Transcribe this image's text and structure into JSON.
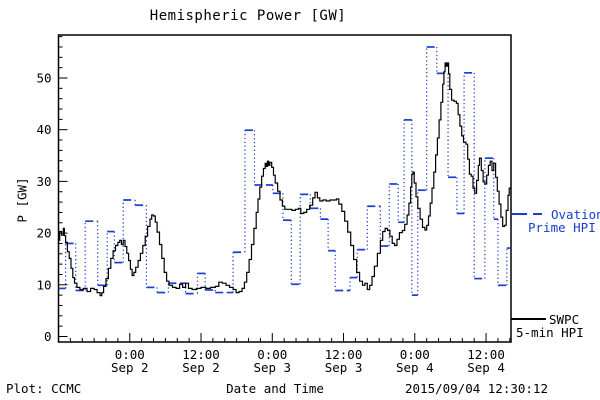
{
  "title": "Hemispheric Power [GW]",
  "axes": {
    "xlabel": "Date and Time",
    "ylabel": "P [GW]"
  },
  "footer": {
    "left": "Plot: CCMC",
    "center": "Date and Time",
    "right": "2015/09/04 12:30:12"
  },
  "legend": {
    "ovation": {
      "line1": "Ovation",
      "line2": "Prime HPI",
      "color": "#1a3ecf"
    },
    "swpc": {
      "line1": "SWPC",
      "line2": "5-min HPI",
      "color": "#000000"
    }
  },
  "chart_data": {
    "type": "line",
    "title": "Hemispheric Power [GW]",
    "xlabel": "Date and Time",
    "ylabel": "P [GW]",
    "x_unit": "hours since 2015-09-01 12:00 UT",
    "xlim_hours": [
      0,
      76.2
    ],
    "ylim": [
      0,
      58.3
    ],
    "y_ticks": [
      0,
      10,
      20,
      30,
      40,
      50
    ],
    "y_minor_step": 2,
    "x_minor_step_hours": 2,
    "x_ticks": [
      {
        "hour": 12,
        "time": "0:00",
        "date": "Sep 2"
      },
      {
        "hour": 24,
        "time": "12:00",
        "date": "Sep 2"
      },
      {
        "hour": 36,
        "time": "0:00",
        "date": "Sep 3"
      },
      {
        "hour": 48,
        "time": "12:00",
        "date": "Sep 3"
      },
      {
        "hour": 60,
        "time": "0:00",
        "date": "Sep 4"
      },
      {
        "hour": 72,
        "time": "12:00",
        "date": "Sep 4"
      }
    ],
    "series": [
      {
        "name": "SWPC 5-min HPI",
        "style": "solid-step",
        "color": "#000000",
        "points": [
          [
            0,
            18.6
          ],
          [
            0.2,
            20.3
          ],
          [
            0.5,
            19.6
          ],
          [
            0.8,
            20.9
          ],
          [
            1.0,
            19.5
          ],
          [
            1.2,
            18.2
          ],
          [
            1.5,
            16.4
          ],
          [
            1.8,
            15.1
          ],
          [
            2.1,
            13.2
          ],
          [
            2.4,
            11.4
          ],
          [
            2.7,
            10.3
          ],
          [
            3.1,
            9.5
          ],
          [
            3.6,
            9.1
          ],
          [
            4.2,
            9.3
          ],
          [
            4.8,
            8.7
          ],
          [
            5.4,
            9.3
          ],
          [
            6.0,
            9.1
          ],
          [
            6.5,
            8.5
          ],
          [
            7.0,
            7.9
          ],
          [
            7.3,
            8.5
          ],
          [
            7.6,
            9.7
          ],
          [
            8.0,
            11.2
          ],
          [
            8.4,
            13.2
          ],
          [
            8.8,
            15.1
          ],
          [
            9.2,
            16.6
          ],
          [
            9.6,
            17.6
          ],
          [
            10.0,
            18.2
          ],
          [
            10.3,
            18.6
          ],
          [
            10.6,
            17.8
          ],
          [
            10.9,
            18.6
          ],
          [
            11.2,
            17.4
          ],
          [
            11.5,
            16.1
          ],
          [
            11.8,
            14.7
          ],
          [
            12.1,
            13.0
          ],
          [
            12.4,
            11.8
          ],
          [
            12.7,
            12.4
          ],
          [
            13.0,
            13.4
          ],
          [
            13.4,
            14.7
          ],
          [
            13.8,
            16.1
          ],
          [
            14.2,
            17.6
          ],
          [
            14.6,
            19.4
          ],
          [
            15.0,
            21.3
          ],
          [
            15.4,
            22.7
          ],
          [
            15.7,
            23.5
          ],
          [
            16.0,
            23.3
          ],
          [
            16.3,
            22.1
          ],
          [
            16.6,
            20.2
          ],
          [
            17.0,
            17.8
          ],
          [
            17.4,
            15.1
          ],
          [
            17.8,
            12.4
          ],
          [
            18.2,
            10.7
          ],
          [
            18.6,
            9.9
          ],
          [
            19.2,
            9.5
          ],
          [
            19.8,
            9.3
          ],
          [
            20.4,
            10.1
          ],
          [
            20.9,
            9.5
          ],
          [
            21.4,
            10.3
          ],
          [
            21.9,
            9.3
          ],
          [
            22.5,
            9.1
          ],
          [
            23.2,
            9.3
          ],
          [
            24.0,
            9.5
          ],
          [
            24.8,
            9.3
          ],
          [
            25.6,
            9.5
          ],
          [
            26.4,
            9.7
          ],
          [
            27.0,
            10.5
          ],
          [
            27.6,
            10.3
          ],
          [
            28.2,
            9.9
          ],
          [
            28.8,
            9.5
          ],
          [
            29.4,
            9.1
          ],
          [
            29.9,
            8.5
          ],
          [
            30.4,
            8.7
          ],
          [
            30.9,
            9.3
          ],
          [
            31.3,
            10.5
          ],
          [
            31.7,
            12.4
          ],
          [
            32.1,
            14.9
          ],
          [
            32.5,
            17.8
          ],
          [
            32.9,
            20.9
          ],
          [
            33.3,
            24.0
          ],
          [
            33.6,
            26.6
          ],
          [
            33.9,
            28.9
          ],
          [
            34.2,
            31.0
          ],
          [
            34.5,
            32.5
          ],
          [
            34.8,
            33.5
          ],
          [
            35.0,
            32.9
          ],
          [
            35.2,
            33.9
          ],
          [
            35.4,
            33.1
          ],
          [
            35.6,
            33.7
          ],
          [
            35.9,
            32.7
          ],
          [
            36.2,
            31.2
          ],
          [
            36.5,
            29.7
          ],
          [
            36.9,
            28.1
          ],
          [
            37.3,
            26.4
          ],
          [
            37.7,
            25.2
          ],
          [
            38.1,
            24.6
          ],
          [
            38.7,
            24.6
          ],
          [
            39.3,
            24.4
          ],
          [
            39.9,
            24.6
          ],
          [
            40.4,
            24.8
          ],
          [
            40.8,
            23.8
          ],
          [
            41.3,
            24.0
          ],
          [
            41.8,
            24.6
          ],
          [
            42.3,
            25.4
          ],
          [
            42.8,
            26.8
          ],
          [
            43.2,
            27.9
          ],
          [
            43.6,
            26.8
          ],
          [
            44.0,
            26.2
          ],
          [
            44.5,
            26.4
          ],
          [
            45.1,
            26.2
          ],
          [
            45.7,
            26.4
          ],
          [
            46.3,
            26.4
          ],
          [
            46.8,
            26.6
          ],
          [
            47.2,
            25.6
          ],
          [
            47.7,
            24.2
          ],
          [
            48.2,
            22.3
          ],
          [
            48.7,
            20.2
          ],
          [
            49.2,
            17.6
          ],
          [
            49.7,
            14.9
          ],
          [
            50.2,
            12.4
          ],
          [
            50.7,
            10.7
          ],
          [
            51.2,
            9.9
          ],
          [
            51.6,
            10.3
          ],
          [
            52.0,
            9.1
          ],
          [
            52.4,
            9.9
          ],
          [
            52.8,
            11.6
          ],
          [
            53.2,
            13.6
          ],
          [
            53.7,
            16.1
          ],
          [
            54.2,
            18.6
          ],
          [
            54.6,
            20.3
          ],
          [
            55.0,
            20.9
          ],
          [
            55.4,
            20.5
          ],
          [
            55.8,
            19.4
          ],
          [
            56.2,
            18.0
          ],
          [
            56.6,
            17.6
          ],
          [
            57.0,
            18.8
          ],
          [
            57.4,
            20.1
          ],
          [
            57.9,
            20.5
          ],
          [
            58.3,
            21.7
          ],
          [
            58.7,
            23.5
          ],
          [
            59.0,
            25.8
          ],
          [
            59.3,
            28.9
          ],
          [
            59.5,
            31.4
          ],
          [
            59.7,
            31.8
          ],
          [
            59.9,
            29.7
          ],
          [
            60.2,
            27.0
          ],
          [
            60.5,
            24.8
          ],
          [
            60.9,
            22.7
          ],
          [
            61.3,
            21.1
          ],
          [
            61.7,
            20.6
          ],
          [
            62.0,
            21.5
          ],
          [
            62.3,
            23.3
          ],
          [
            62.6,
            25.8
          ],
          [
            62.9,
            28.7
          ],
          [
            63.2,
            31.8
          ],
          [
            63.5,
            35.1
          ],
          [
            63.8,
            38.4
          ],
          [
            64.1,
            41.9
          ],
          [
            64.4,
            45.3
          ],
          [
            64.7,
            48.8
          ],
          [
            64.9,
            51.2
          ],
          [
            65.1,
            52.9
          ],
          [
            65.3,
            52.3
          ],
          [
            65.5,
            52.9
          ],
          [
            65.7,
            50.8
          ],
          [
            65.9,
            47.8
          ],
          [
            66.2,
            45.7
          ],
          [
            66.6,
            45.5
          ],
          [
            67.0,
            45.1
          ],
          [
            67.3,
            42.9
          ],
          [
            67.6,
            40.7
          ],
          [
            67.9,
            38.8
          ],
          [
            68.2,
            37.6
          ],
          [
            68.6,
            37.2
          ],
          [
            68.9,
            34.3
          ],
          [
            69.2,
            31.4
          ],
          [
            69.5,
            31.0
          ],
          [
            69.8,
            28.7
          ],
          [
            70.1,
            27.7
          ],
          [
            70.4,
            30.2
          ],
          [
            70.7,
            33.1
          ],
          [
            70.9,
            34.5
          ],
          [
            71.2,
            32.1
          ],
          [
            71.5,
            29.9
          ],
          [
            71.8,
            29.5
          ],
          [
            72.1,
            31.2
          ],
          [
            72.4,
            33.1
          ],
          [
            72.7,
            33.9
          ],
          [
            73.0,
            32.1
          ],
          [
            73.3,
            33.5
          ],
          [
            73.6,
            30.8
          ],
          [
            73.9,
            28.1
          ],
          [
            74.2,
            25.6
          ],
          [
            74.5,
            23.1
          ],
          [
            74.8,
            21.3
          ],
          [
            75.1,
            21.5
          ],
          [
            75.4,
            24.4
          ],
          [
            75.7,
            27.3
          ],
          [
            75.9,
            28.7
          ],
          [
            76.2,
            27.5
          ]
        ]
      },
      {
        "name": "Ovation Prime HPI",
        "style": "dashed-step",
        "color": "#1a3ecf",
        "end_hour": 76.2,
        "steps": [
          [
            0.0,
            9.3
          ],
          [
            1.2,
            18.0
          ],
          [
            2.9,
            8.9
          ],
          [
            4.5,
            22.3
          ],
          [
            6.6,
            9.9
          ],
          [
            8.2,
            20.3
          ],
          [
            9.4,
            14.3
          ],
          [
            10.9,
            26.4
          ],
          [
            12.9,
            25.4
          ],
          [
            14.8,
            9.5
          ],
          [
            16.6,
            8.5
          ],
          [
            18.5,
            10.3
          ],
          [
            21.4,
            8.3
          ],
          [
            23.4,
            12.2
          ],
          [
            24.7,
            9.0
          ],
          [
            26.4,
            8.5
          ],
          [
            29.4,
            16.3
          ],
          [
            31.4,
            39.9
          ],
          [
            33.0,
            29.3
          ],
          [
            36.1,
            27.7
          ],
          [
            37.8,
            22.5
          ],
          [
            39.2,
            10.1
          ],
          [
            40.7,
            27.5
          ],
          [
            42.4,
            24.8
          ],
          [
            44.1,
            22.7
          ],
          [
            45.4,
            16.6
          ],
          [
            46.6,
            8.9
          ],
          [
            49.1,
            11.4
          ],
          [
            50.3,
            16.8
          ],
          [
            52.0,
            25.2
          ],
          [
            54.2,
            17.5
          ],
          [
            55.7,
            29.5
          ],
          [
            57.2,
            22.1
          ],
          [
            58.2,
            41.9
          ],
          [
            59.5,
            8.0
          ],
          [
            60.5,
            28.3
          ],
          [
            62.0,
            56.0
          ],
          [
            63.7,
            50.9
          ],
          [
            65.6,
            30.8
          ],
          [
            67.1,
            23.8
          ],
          [
            68.3,
            51.0
          ],
          [
            70.0,
            11.2
          ],
          [
            71.8,
            34.5
          ],
          [
            73.3,
            22.7
          ],
          [
            74.0,
            9.9
          ],
          [
            75.5,
            17.1
          ]
        ]
      }
    ]
  }
}
